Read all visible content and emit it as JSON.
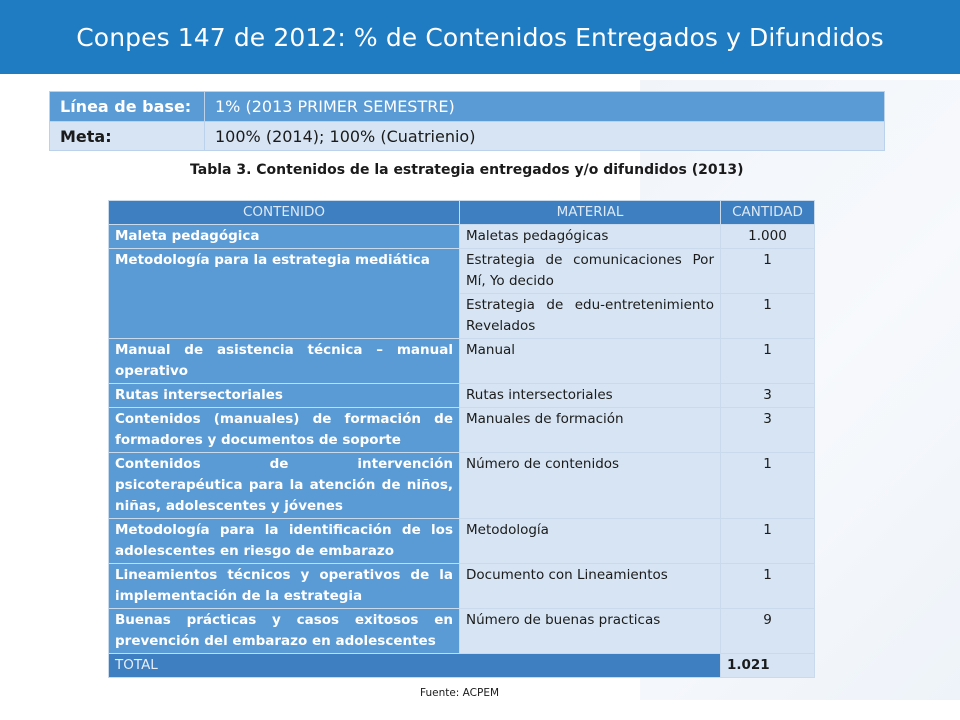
{
  "header": {
    "title": "Conpes 147 de 2012: % de Contenidos Entregados y Difundidos"
  },
  "baseline": {
    "rows": [
      {
        "label": "Línea de base:",
        "value": "1% (2013 PRIMER SEMESTRE)"
      },
      {
        "label": "Meta:",
        "value": "100% (2014); 100% (Cuatrienio)"
      }
    ]
  },
  "table": {
    "caption": "Tabla 3. Contenidos de la estrategia entregados y/o difundidos (2013)",
    "headers": {
      "contenido": "CONTENIDO",
      "material": "MATERIAL",
      "cantidad": "CANTIDAD"
    },
    "rows": [
      {
        "contenido": "Maleta pedagógica",
        "material": "Maletas pedagógicas",
        "cantidad": "1.000"
      },
      {
        "contenido": "Metodología para la estrategia mediática",
        "material": "Estrategia de comunicaciones Por Mí, Yo decido",
        "cantidad": "1"
      },
      {
        "contenido": "",
        "material": "Estrategia de edu-entretenimiento Revelados",
        "cantidad": "1"
      },
      {
        "contenido": "Manual de asistencia técnica – manual operativo",
        "material": "Manual",
        "cantidad": "1"
      },
      {
        "contenido": "Rutas intersectoriales",
        "material": "Rutas intersectoriales",
        "cantidad": "3"
      },
      {
        "contenido": "Contenidos (manuales) de formación de formadores y documentos de soporte",
        "material": "Manuales de formación",
        "cantidad": "3"
      },
      {
        "contenido": "Contenidos de intervención psicoterapéutica para la atención de niños, niñas, adolescentes y jóvenes",
        "material": "Número de contenidos",
        "cantidad": "1"
      },
      {
        "contenido": "Metodología para la identificación de los adolescentes en riesgo de embarazo",
        "material": "Metodología",
        "cantidad": "1"
      },
      {
        "contenido": "Lineamientos técnicos y operativos de la implementación de la estrategia",
        "material": "Documento con Lineamientos",
        "cantidad": "1"
      },
      {
        "contenido": "Buenas prácticas y casos exitosos en prevención del embarazo en adolescentes",
        "material": "Número de buenas practicas",
        "cantidad": "9"
      }
    ],
    "total": {
      "label": "TOTAL",
      "value": "1.021"
    }
  },
  "source": "Fuente: ACPEM"
}
